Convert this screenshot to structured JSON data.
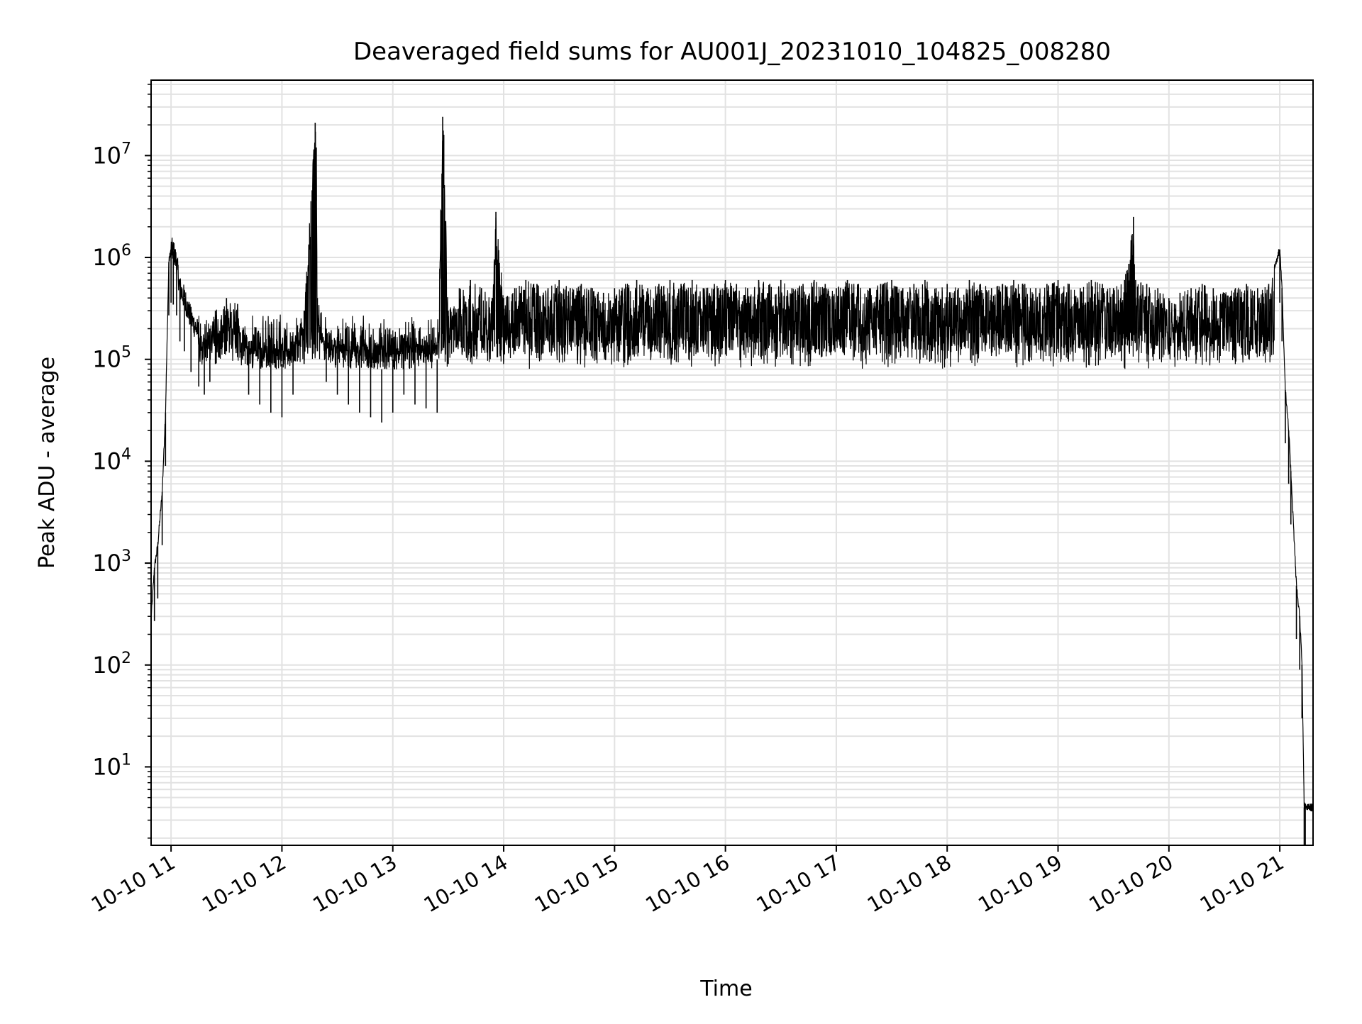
{
  "chart_data": {
    "type": "line",
    "title": "Deaveraged field sums for AU001J_20231010_104825_008280",
    "xlabel": "Time",
    "ylabel": "Peak ADU - average",
    "x_ticks": [
      "10-10 11",
      "10-10 12",
      "10-10 13",
      "10-10 14",
      "10-10 15",
      "10-10 16",
      "10-10 17",
      "10-10 18",
      "10-10 19",
      "10-10 20",
      "10-10 21"
    ],
    "x_tick_hours": [
      11,
      12,
      13,
      14,
      15,
      16,
      17,
      18,
      19,
      20,
      21
    ],
    "xlim_hours": [
      10.82,
      21.3
    ],
    "y_scale": "log",
    "ylim": [
      1.7,
      55000000
    ],
    "y_ticks": [
      {
        "base": "10",
        "exp": "1",
        "value": 10
      },
      {
        "base": "10",
        "exp": "2",
        "value": 100
      },
      {
        "base": "10",
        "exp": "3",
        "value": 1000
      },
      {
        "base": "10",
        "exp": "4",
        "value": 10000
      },
      {
        "base": "10",
        "exp": "5",
        "value": 100000
      },
      {
        "base": "10",
        "exp": "6",
        "value": 1000000
      },
      {
        "base": "10",
        "exp": "7",
        "value": 10000000
      }
    ],
    "grid": true,
    "series": [
      {
        "color": "#000000",
        "x_hours": [
          10.82,
          10.85,
          10.88,
          10.92,
          10.95,
          10.98,
          11.0,
          11.02,
          11.05,
          11.08,
          11.12,
          11.18,
          11.25,
          11.3,
          11.35,
          11.4,
          11.5,
          11.6,
          11.7,
          11.8,
          11.9,
          12.0,
          12.1,
          12.2,
          12.3,
          12.31,
          12.32,
          12.4,
          12.5,
          12.6,
          12.7,
          12.8,
          12.9,
          13.0,
          13.1,
          13.2,
          13.3,
          13.4,
          13.45,
          13.46,
          13.5,
          13.6,
          13.7,
          13.8,
          13.9,
          13.93,
          14.0,
          14.1,
          14.2,
          14.3,
          14.4,
          14.5,
          14.6,
          14.7,
          14.8,
          14.9,
          15.0,
          15.1,
          15.2,
          15.3,
          15.4,
          15.5,
          15.6,
          15.7,
          15.8,
          15.9,
          16.0,
          16.1,
          16.2,
          16.3,
          16.4,
          16.5,
          16.6,
          16.7,
          16.8,
          16.9,
          17.0,
          17.1,
          17.2,
          17.3,
          17.4,
          17.5,
          17.6,
          17.7,
          17.8,
          17.9,
          18.0,
          18.1,
          18.2,
          18.3,
          18.4,
          18.5,
          18.6,
          18.7,
          18.8,
          18.9,
          19.0,
          19.1,
          19.2,
          19.3,
          19.4,
          19.5,
          19.6,
          19.68,
          19.7,
          19.8,
          19.9,
          20.0,
          20.05,
          20.1,
          20.2,
          20.3,
          20.4,
          20.5,
          20.6,
          20.7,
          20.8,
          20.9,
          21.0,
          21.02,
          21.05,
          21.08,
          21.1,
          21.15,
          21.18,
          21.2,
          21.22,
          21.23,
          21.3
        ],
        "y": [
          280,
          900,
          1500,
          5000,
          30000,
          900000,
          1200000,
          1150000,
          900000,
          500000,
          400000,
          250000,
          180000,
          150000,
          200000,
          300000,
          400000,
          350000,
          150000,
          120000,
          100000,
          90000,
          150000,
          300000,
          21000000,
          12000000,
          400000,
          200000,
          150000,
          120000,
          100000,
          90000,
          80000,
          100000,
          150000,
          120000,
          110000,
          100000,
          24000000,
          16000000,
          300000,
          500000,
          600000,
          500000,
          400000,
          2800000,
          400000,
          500000,
          600000,
          550000,
          500000,
          600000,
          500000,
          550000,
          500000,
          450000,
          500000,
          550000,
          600000,
          500000,
          550000,
          600000,
          550000,
          600000,
          500000,
          550000,
          600000,
          550000,
          500000,
          600000,
          550000,
          600000,
          500000,
          550000,
          600000,
          550000,
          500000,
          600000,
          550000,
          500000,
          550000,
          600000,
          500000,
          550000,
          600000,
          500000,
          550000,
          500000,
          600000,
          550000,
          500000,
          550000,
          600000,
          550000,
          500000,
          550000,
          600000,
          550000,
          500000,
          600000,
          550000,
          500000,
          600000,
          2500000,
          600000,
          550000,
          500000,
          400000,
          350000,
          450000,
          500000,
          550000,
          500000,
          450000,
          500000,
          550000,
          500000,
          550000,
          1200000,
          500000,
          50000,
          20000,
          8000,
          600,
          300,
          100,
          4,
          4,
          4
        ]
      }
    ]
  }
}
